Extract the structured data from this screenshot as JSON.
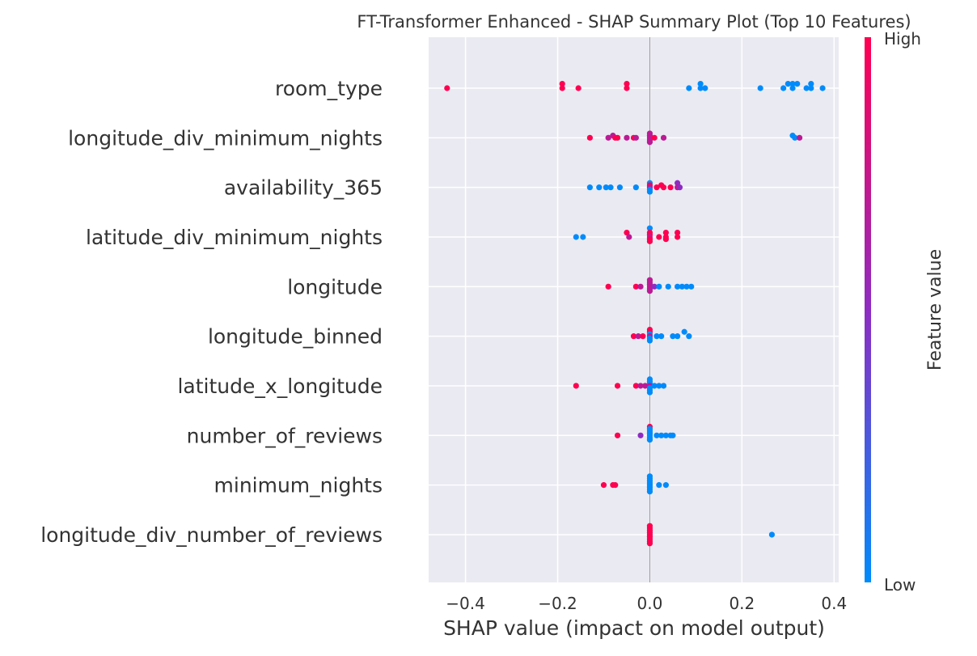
{
  "chart_data": {
    "type": "scatter",
    "title": "FT-Transformer Enhanced - SHAP Summary Plot (Top 10 Features)",
    "xlabel": "SHAP value (impact on model output)",
    "ylabel": "",
    "xlim": [
      -0.48,
      0.41
    ],
    "xticks": [
      -0.4,
      -0.2,
      0.0,
      0.2,
      0.4
    ],
    "xtick_labels": [
      "−0.4",
      "−0.2",
      "0.0",
      "0.2",
      "0.4"
    ],
    "grid": true,
    "colorbar": {
      "label": "Feature value",
      "high_label": "High",
      "low_label": "Low",
      "low_color": "#008bfb",
      "mid_color": "#8e2cc2",
      "high_color": "#ff0051"
    },
    "colors": {
      "plot_background": "#eaeaf2",
      "grid": "#ffffff",
      "zero_line": "#999999"
    },
    "features": [
      {
        "name": "room_type",
        "points": [
          {
            "x": -0.44,
            "y": 0.0,
            "v": 1.0
          },
          {
            "x": -0.19,
            "y": 0.0,
            "v": 1.0
          },
          {
            "x": -0.19,
            "y": 0.18,
            "v": 1.0
          },
          {
            "x": -0.155,
            "y": 0.0,
            "v": 1.0
          },
          {
            "x": -0.05,
            "y": 0.18,
            "v": 1.0
          },
          {
            "x": -0.05,
            "y": 0.0,
            "v": 1.0
          },
          {
            "x": 0.085,
            "y": 0.0,
            "v": 0.0
          },
          {
            "x": 0.11,
            "y": 0.18,
            "v": 0.0
          },
          {
            "x": 0.11,
            "y": 0.0,
            "v": 0.0
          },
          {
            "x": 0.12,
            "y": 0.0,
            "v": 0.0
          },
          {
            "x": 0.24,
            "y": 0.0,
            "v": 0.0
          },
          {
            "x": 0.29,
            "y": 0.0,
            "v": 0.0
          },
          {
            "x": 0.3,
            "y": 0.18,
            "v": 0.0
          },
          {
            "x": 0.31,
            "y": 0.0,
            "v": 0.0
          },
          {
            "x": 0.31,
            "y": 0.18,
            "v": 0.0
          },
          {
            "x": 0.32,
            "y": 0.18,
            "v": 0.0
          },
          {
            "x": 0.34,
            "y": 0.0,
            "v": 0.0
          },
          {
            "x": 0.35,
            "y": 0.18,
            "v": 0.0
          },
          {
            "x": 0.35,
            "y": 0.0,
            "v": 0.0
          },
          {
            "x": 0.375,
            "y": 0.0,
            "v": 0.0
          }
        ]
      },
      {
        "name": "longitude_div_minimum_nights",
        "points": [
          {
            "x": -0.13,
            "y": 0.0,
            "v": 1.0
          },
          {
            "x": -0.09,
            "y": 0.0,
            "v": 0.7
          },
          {
            "x": -0.08,
            "y": 0.09,
            "v": 0.7
          },
          {
            "x": -0.075,
            "y": 0.0,
            "v": 1.0
          },
          {
            "x": -0.07,
            "y": 0.0,
            "v": 1.0
          },
          {
            "x": -0.05,
            "y": 0.0,
            "v": 0.7
          },
          {
            "x": -0.035,
            "y": 0.0,
            "v": 1.0
          },
          {
            "x": -0.03,
            "y": 0.0,
            "v": 0.7
          },
          {
            "x": 0.0,
            "y": 0.09,
            "v": 0.7
          },
          {
            "x": 0.0,
            "y": 0.18,
            "v": 0.7
          },
          {
            "x": 0.0,
            "y": 0.0,
            "v": 0.7
          },
          {
            "x": 0.0,
            "y": -0.09,
            "v": 0.7
          },
          {
            "x": 0.0,
            "y": -0.18,
            "v": 0.7
          },
          {
            "x": 0.01,
            "y": 0.0,
            "v": 1.0
          },
          {
            "x": 0.03,
            "y": 0.0,
            "v": 0.7
          },
          {
            "x": 0.31,
            "y": 0.09,
            "v": 0.0
          },
          {
            "x": 0.315,
            "y": 0.0,
            "v": 0.0
          },
          {
            "x": 0.325,
            "y": 0.0,
            "v": 0.7
          }
        ]
      },
      {
        "name": "availability_365",
        "points": [
          {
            "x": -0.13,
            "y": 0.0,
            "v": 0.0
          },
          {
            "x": -0.11,
            "y": 0.0,
            "v": 0.0
          },
          {
            "x": -0.095,
            "y": 0.0,
            "v": 0.0
          },
          {
            "x": -0.085,
            "y": 0.0,
            "v": 0.0
          },
          {
            "x": -0.065,
            "y": 0.0,
            "v": 0.0
          },
          {
            "x": -0.03,
            "y": 0.0,
            "v": 0.0
          },
          {
            "x": 0.0,
            "y": 0.18,
            "v": 0.0
          },
          {
            "x": 0.0,
            "y": 0.09,
            "v": 1.0
          },
          {
            "x": 0.0,
            "y": 0.0,
            "v": 0.7
          },
          {
            "x": 0.0,
            "y": -0.09,
            "v": 0.0
          },
          {
            "x": 0.0,
            "y": -0.18,
            "v": 0.0
          },
          {
            "x": 0.015,
            "y": 0.0,
            "v": 1.0
          },
          {
            "x": 0.025,
            "y": 0.09,
            "v": 1.0
          },
          {
            "x": 0.03,
            "y": 0.0,
            "v": 1.0
          },
          {
            "x": 0.045,
            "y": 0.0,
            "v": 1.0
          },
          {
            "x": 0.06,
            "y": 0.18,
            "v": 0.5
          },
          {
            "x": 0.06,
            "y": 0.0,
            "v": 0.7
          },
          {
            "x": 0.065,
            "y": 0.0,
            "v": 0.5
          }
        ]
      },
      {
        "name": "latitude_div_minimum_nights",
        "points": [
          {
            "x": -0.16,
            "y": 0.0,
            "v": 0.0
          },
          {
            "x": -0.145,
            "y": 0.0,
            "v": 0.0
          },
          {
            "x": -0.05,
            "y": 0.18,
            "v": 1.0
          },
          {
            "x": -0.045,
            "y": 0.0,
            "v": 0.7
          },
          {
            "x": 0.0,
            "y": 0.36,
            "v": 0.0
          },
          {
            "x": 0.0,
            "y": 0.18,
            "v": 1.0
          },
          {
            "x": 0.0,
            "y": 0.09,
            "v": 1.0
          },
          {
            "x": 0.0,
            "y": 0.0,
            "v": 0.7
          },
          {
            "x": 0.0,
            "y": -0.09,
            "v": 1.0
          },
          {
            "x": 0.0,
            "y": -0.18,
            "v": 1.0
          },
          {
            "x": 0.02,
            "y": 0.0,
            "v": 1.0
          },
          {
            "x": 0.035,
            "y": 0.18,
            "v": 1.0
          },
          {
            "x": 0.035,
            "y": 0.0,
            "v": 1.0
          },
          {
            "x": 0.035,
            "y": -0.09,
            "v": 1.0
          },
          {
            "x": 0.06,
            "y": 0.18,
            "v": 1.0
          },
          {
            "x": 0.06,
            "y": 0.0,
            "v": 1.0
          }
        ]
      },
      {
        "name": "longitude",
        "points": [
          {
            "x": -0.09,
            "y": 0.0,
            "v": 1.0
          },
          {
            "x": -0.03,
            "y": 0.0,
            "v": 1.0
          },
          {
            "x": -0.02,
            "y": 0.0,
            "v": 0.7
          },
          {
            "x": 0.0,
            "y": 0.27,
            "v": 0.7
          },
          {
            "x": 0.0,
            "y": 0.18,
            "v": 0.7
          },
          {
            "x": 0.0,
            "y": 0.09,
            "v": 0.7
          },
          {
            "x": 0.0,
            "y": 0.0,
            "v": 0.7
          },
          {
            "x": 0.0,
            "y": -0.09,
            "v": 0.7
          },
          {
            "x": 0.0,
            "y": -0.18,
            "v": 0.7
          },
          {
            "x": 0.01,
            "y": 0.0,
            "v": 0.5
          },
          {
            "x": 0.02,
            "y": 0.0,
            "v": 0.0
          },
          {
            "x": 0.04,
            "y": 0.0,
            "v": 0.0
          },
          {
            "x": 0.06,
            "y": 0.0,
            "v": 0.0
          },
          {
            "x": 0.07,
            "y": 0.0,
            "v": 0.0
          },
          {
            "x": 0.08,
            "y": 0.0,
            "v": 0.0
          },
          {
            "x": 0.09,
            "y": 0.0,
            "v": 0.0
          }
        ]
      },
      {
        "name": "longitude_binned",
        "points": [
          {
            "x": -0.035,
            "y": 0.0,
            "v": 1.0
          },
          {
            "x": -0.025,
            "y": 0.0,
            "v": 0.7
          },
          {
            "x": -0.015,
            "y": 0.0,
            "v": 1.0
          },
          {
            "x": 0.0,
            "y": 0.27,
            "v": 1.0
          },
          {
            "x": 0.0,
            "y": 0.18,
            "v": 1.0
          },
          {
            "x": 0.0,
            "y": 0.09,
            "v": 0.0
          },
          {
            "x": 0.0,
            "y": 0.0,
            "v": 0.7
          },
          {
            "x": 0.0,
            "y": -0.09,
            "v": 0.0
          },
          {
            "x": 0.0,
            "y": -0.18,
            "v": 0.0
          },
          {
            "x": 0.015,
            "y": 0.0,
            "v": 0.0
          },
          {
            "x": 0.025,
            "y": 0.0,
            "v": 0.0
          },
          {
            "x": 0.05,
            "y": 0.0,
            "v": 0.0
          },
          {
            "x": 0.06,
            "y": 0.0,
            "v": 0.0
          },
          {
            "x": 0.075,
            "y": 0.18,
            "v": 0.0
          },
          {
            "x": 0.085,
            "y": 0.0,
            "v": 0.0
          }
        ]
      },
      {
        "name": "latitude_x_longitude",
        "points": [
          {
            "x": -0.16,
            "y": 0.0,
            "v": 1.0
          },
          {
            "x": -0.07,
            "y": 0.0,
            "v": 1.0
          },
          {
            "x": -0.03,
            "y": 0.0,
            "v": 1.0
          },
          {
            "x": -0.02,
            "y": 0.0,
            "v": 0.7
          },
          {
            "x": -0.01,
            "y": 0.0,
            "v": 0.7
          },
          {
            "x": 0.0,
            "y": 0.27,
            "v": 0.0
          },
          {
            "x": 0.0,
            "y": 0.18,
            "v": 0.0
          },
          {
            "x": 0.0,
            "y": 0.09,
            "v": 0.0
          },
          {
            "x": 0.0,
            "y": 0.0,
            "v": 0.7
          },
          {
            "x": 0.0,
            "y": -0.09,
            "v": 0.0
          },
          {
            "x": 0.0,
            "y": -0.18,
            "v": 0.0
          },
          {
            "x": 0.0,
            "y": -0.27,
            "v": 0.0
          },
          {
            "x": 0.01,
            "y": 0.0,
            "v": 0.0
          },
          {
            "x": 0.02,
            "y": 0.0,
            "v": 0.0
          },
          {
            "x": 0.03,
            "y": 0.0,
            "v": 0.0
          }
        ]
      },
      {
        "name": "number_of_reviews",
        "points": [
          {
            "x": -0.07,
            "y": 0.0,
            "v": 1.0
          },
          {
            "x": -0.02,
            "y": 0.0,
            "v": 0.5
          },
          {
            "x": 0.0,
            "y": 0.36,
            "v": 1.0
          },
          {
            "x": 0.0,
            "y": 0.27,
            "v": 0.0
          },
          {
            "x": 0.0,
            "y": 0.18,
            "v": 0.0
          },
          {
            "x": 0.0,
            "y": 0.09,
            "v": 0.0
          },
          {
            "x": 0.0,
            "y": 0.0,
            "v": 0.0
          },
          {
            "x": 0.0,
            "y": -0.09,
            "v": 0.0
          },
          {
            "x": 0.0,
            "y": -0.18,
            "v": 0.0
          },
          {
            "x": 0.015,
            "y": 0.0,
            "v": 0.0
          },
          {
            "x": 0.025,
            "y": 0.0,
            "v": 0.0
          },
          {
            "x": 0.035,
            "y": 0.0,
            "v": 0.0
          },
          {
            "x": 0.045,
            "y": 0.0,
            "v": 0.0
          },
          {
            "x": 0.05,
            "y": 0.0,
            "v": 0.0
          }
        ]
      },
      {
        "name": "minimum_nights",
        "points": [
          {
            "x": -0.1,
            "y": 0.0,
            "v": 1.0
          },
          {
            "x": -0.08,
            "y": 0.0,
            "v": 1.0
          },
          {
            "x": -0.075,
            "y": 0.0,
            "v": 1.0
          },
          {
            "x": 0.0,
            "y": 0.36,
            "v": 0.0
          },
          {
            "x": 0.0,
            "y": 0.27,
            "v": 0.0
          },
          {
            "x": 0.0,
            "y": 0.18,
            "v": 0.0
          },
          {
            "x": 0.0,
            "y": 0.09,
            "v": 0.0
          },
          {
            "x": 0.0,
            "y": 0.0,
            "v": 0.0
          },
          {
            "x": 0.0,
            "y": -0.09,
            "v": 0.0
          },
          {
            "x": 0.0,
            "y": -0.18,
            "v": 0.0
          },
          {
            "x": 0.0,
            "y": -0.27,
            "v": 0.0
          },
          {
            "x": 0.02,
            "y": 0.0,
            "v": 0.0
          },
          {
            "x": 0.035,
            "y": 0.0,
            "v": 0.0
          }
        ]
      },
      {
        "name": "longitude_div_number_of_reviews",
        "points": [
          {
            "x": 0.0,
            "y": 0.36,
            "v": 1.0
          },
          {
            "x": 0.0,
            "y": 0.27,
            "v": 1.0
          },
          {
            "x": 0.0,
            "y": 0.18,
            "v": 1.0
          },
          {
            "x": 0.0,
            "y": 0.09,
            "v": 1.0
          },
          {
            "x": 0.0,
            "y": 0.0,
            "v": 1.0
          },
          {
            "x": 0.0,
            "y": -0.09,
            "v": 1.0
          },
          {
            "x": 0.0,
            "y": -0.18,
            "v": 1.0
          },
          {
            "x": 0.0,
            "y": -0.27,
            "v": 1.0
          },
          {
            "x": 0.0,
            "y": -0.36,
            "v": 1.0
          },
          {
            "x": 0.265,
            "y": 0.0,
            "v": 0.0
          }
        ]
      }
    ]
  }
}
